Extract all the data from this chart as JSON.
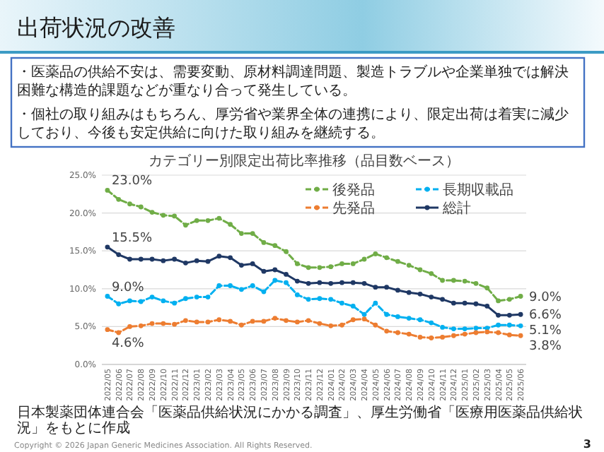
{
  "chart_data": {
    "type": "line",
    "title": "出荷状況の改善",
    "subtitle": "カテゴリー別限定出荷比率推移（品目数ベース）",
    "annotations": [
      "・医薬品の供給不安は、需要変動、原材料調達問題、製造トラブルや企業単独では解決困難な構造的課題などが重なり合って発生している。",
      "・個社の取り組みはもちろん、厚労省や業界全体の連携により、限定出荷は着実に減少しており、今後も安定供給に向けた取り組みを継続する。",
      "日本製薬団体連合会「医薬品供給状況にかかる調査」、厚生労働省「医療用医薬品供給状況」をもとに作成",
      "Copyright © 2026 Japan Generic Medicines Association. All Rights Reserved.",
      "3"
    ],
    "categories": [
      "2022/05",
      "2022/06",
      "2022/07",
      "2022/08",
      "2022/09",
      "2022/10",
      "2022/11",
      "2022/12",
      "2023/01",
      "2023/02",
      "2023/03",
      "2023/04",
      "2023/05",
      "2023/06",
      "2023/07",
      "2023/08",
      "2023/09",
      "2023/10",
      "2023/11",
      "2023/12",
      "2024/01",
      "2024/02",
      "2024/03",
      "2024/04",
      "2024/05",
      "2024/06",
      "2024/07",
      "2024/08",
      "2024/09",
      "2024/10",
      "2024/11",
      "2024/12",
      "2025/01",
      "2025/02",
      "2025/03",
      "2025/04",
      "2025/05",
      "2025/06"
    ],
    "series": [
      {
        "name": "後発品",
        "color": "#70ad47",
        "line_style": "dashed",
        "values": [
          23.0,
          21.8,
          21.2,
          20.8,
          20.1,
          19.7,
          19.6,
          18.4,
          19.0,
          19.0,
          19.3,
          18.5,
          17.3,
          17.3,
          16.1,
          15.7,
          14.9,
          13.3,
          12.8,
          12.8,
          12.9,
          13.3,
          13.3,
          13.9,
          14.6,
          14.1,
          13.6,
          13.1,
          12.5,
          12.0,
          11.1,
          11.1,
          11.0,
          10.7,
          10.1,
          8.4,
          8.6,
          9.0
        ],
        "value_labels": [
          "23.0%",
          null,
          null,
          null,
          null,
          null,
          null,
          null,
          null,
          null,
          null,
          null,
          null,
          null,
          null,
          null,
          null,
          null,
          null,
          null,
          null,
          null,
          null,
          null,
          null,
          null,
          null,
          null,
          null,
          null,
          null,
          null,
          null,
          null,
          null,
          null,
          null,
          "9.0%"
        ]
      },
      {
        "name": "長期収載品",
        "color": "#00b0f0",
        "line_style": "dashed",
        "values": [
          9.0,
          8.0,
          8.4,
          8.3,
          8.9,
          8.4,
          8.1,
          8.7,
          8.9,
          8.9,
          10.4,
          10.4,
          9.9,
          10.4,
          9.6,
          11.1,
          10.8,
          9.2,
          8.6,
          8.7,
          8.6,
          8.1,
          7.7,
          6.6,
          8.1,
          6.6,
          6.3,
          6.1,
          5.9,
          5.5,
          4.9,
          4.7,
          4.7,
          4.8,
          4.8,
          5.2,
          5.2,
          5.1
        ],
        "value_labels": [
          "9.0%",
          null,
          null,
          null,
          null,
          null,
          null,
          null,
          null,
          null,
          null,
          null,
          null,
          null,
          null,
          null,
          null,
          null,
          null,
          null,
          null,
          null,
          null,
          null,
          null,
          null,
          null,
          null,
          null,
          null,
          null,
          null,
          null,
          null,
          null,
          null,
          null,
          "5.1%"
        ]
      },
      {
        "name": "先発品",
        "color": "#ed7d31",
        "line_style": "dashed",
        "values": [
          4.6,
          4.2,
          5.0,
          5.1,
          5.4,
          5.4,
          5.3,
          5.8,
          5.6,
          5.6,
          5.9,
          5.7,
          5.2,
          5.7,
          5.7,
          6.1,
          5.8,
          5.6,
          5.8,
          5.4,
          5.1,
          5.2,
          5.9,
          6.0,
          5.2,
          4.4,
          4.2,
          4.0,
          3.6,
          3.5,
          3.6,
          3.8,
          4.0,
          4.2,
          4.3,
          4.2,
          3.9,
          3.8
        ],
        "value_labels": [
          "4.6%",
          null,
          null,
          null,
          null,
          null,
          null,
          null,
          null,
          null,
          null,
          null,
          null,
          null,
          null,
          null,
          null,
          null,
          null,
          null,
          null,
          null,
          null,
          null,
          null,
          null,
          null,
          null,
          null,
          null,
          null,
          null,
          null,
          null,
          null,
          null,
          null,
          "3.8%"
        ]
      },
      {
        "name": "総計",
        "color": "#1f3864",
        "line_style": "solid",
        "values": [
          15.5,
          14.5,
          13.9,
          13.9,
          13.9,
          13.7,
          13.9,
          13.4,
          13.7,
          13.6,
          14.3,
          14.1,
          13.1,
          13.3,
          12.3,
          12.5,
          11.9,
          11.0,
          10.7,
          10.8,
          10.7,
          10.8,
          10.8,
          10.7,
          10.2,
          10.2,
          9.8,
          9.5,
          9.3,
          8.9,
          8.6,
          8.1,
          8.1,
          8.0,
          7.7,
          6.5,
          6.5,
          6.6
        ],
        "value_labels": [
          "15.5%",
          null,
          null,
          null,
          null,
          null,
          null,
          null,
          null,
          null,
          null,
          null,
          null,
          null,
          null,
          null,
          null,
          null,
          null,
          null,
          null,
          null,
          null,
          null,
          null,
          null,
          null,
          null,
          null,
          null,
          null,
          null,
          null,
          null,
          null,
          null,
          null,
          "6.6%"
        ]
      }
    ],
    "ylim": [
      0,
      25
    ],
    "yticks": [
      {
        "value": 0,
        "label": "0.0%"
      },
      {
        "value": 5,
        "label": "5.0%"
      },
      {
        "value": 10,
        "label": "10.0%"
      },
      {
        "value": 15,
        "label": "15.0%"
      },
      {
        "value": 20,
        "label": "20.0%"
      },
      {
        "value": 25,
        "label": "25.0%"
      }
    ],
    "grid": "y",
    "legend": "top right",
    "marker": "circle"
  }
}
